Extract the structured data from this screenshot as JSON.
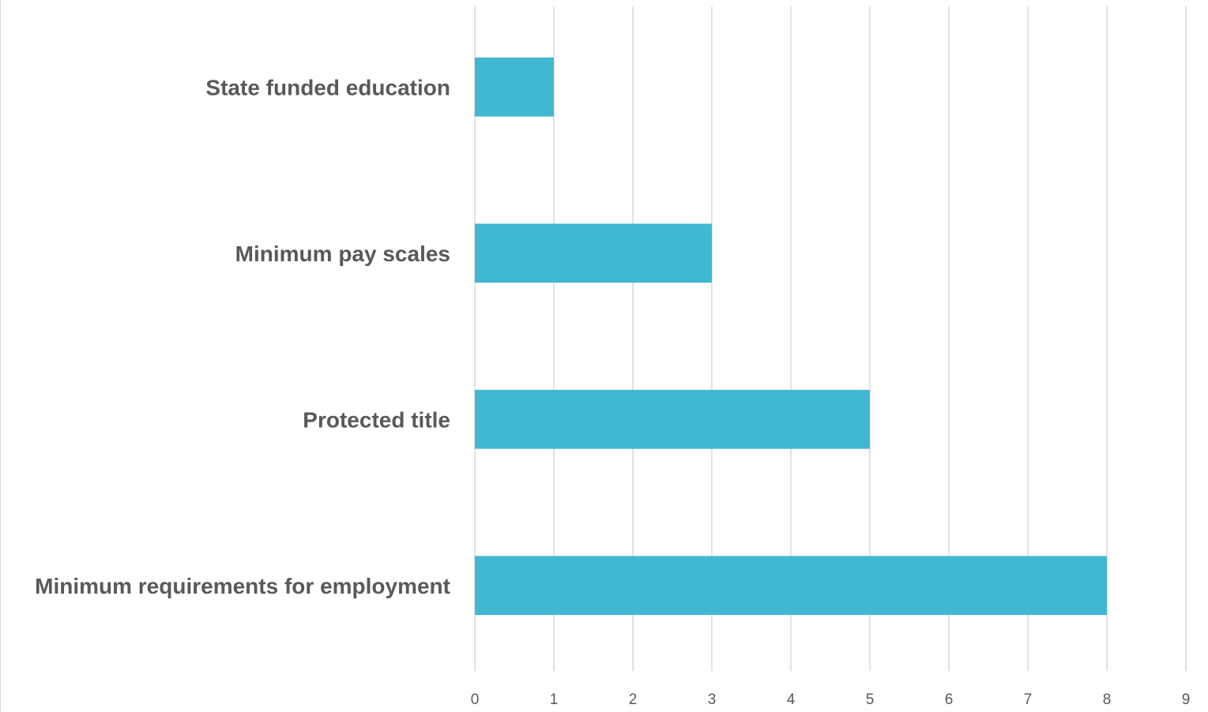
{
  "chart_data": {
    "type": "bar",
    "orientation": "horizontal",
    "categories": [
      "State funded education",
      "Minimum pay scales",
      "Protected title",
      "Minimum requirements for employment"
    ],
    "values": [
      1,
      3,
      5,
      8
    ],
    "xlim": [
      0,
      9
    ],
    "xticks": [
      "0",
      "1",
      "2",
      "3",
      "4",
      "5",
      "6",
      "7",
      "8",
      "9"
    ],
    "grid": true,
    "legend": "none",
    "title": "",
    "xlabel": "",
    "ylabel": "",
    "bar_color": "#41B8D2"
  }
}
